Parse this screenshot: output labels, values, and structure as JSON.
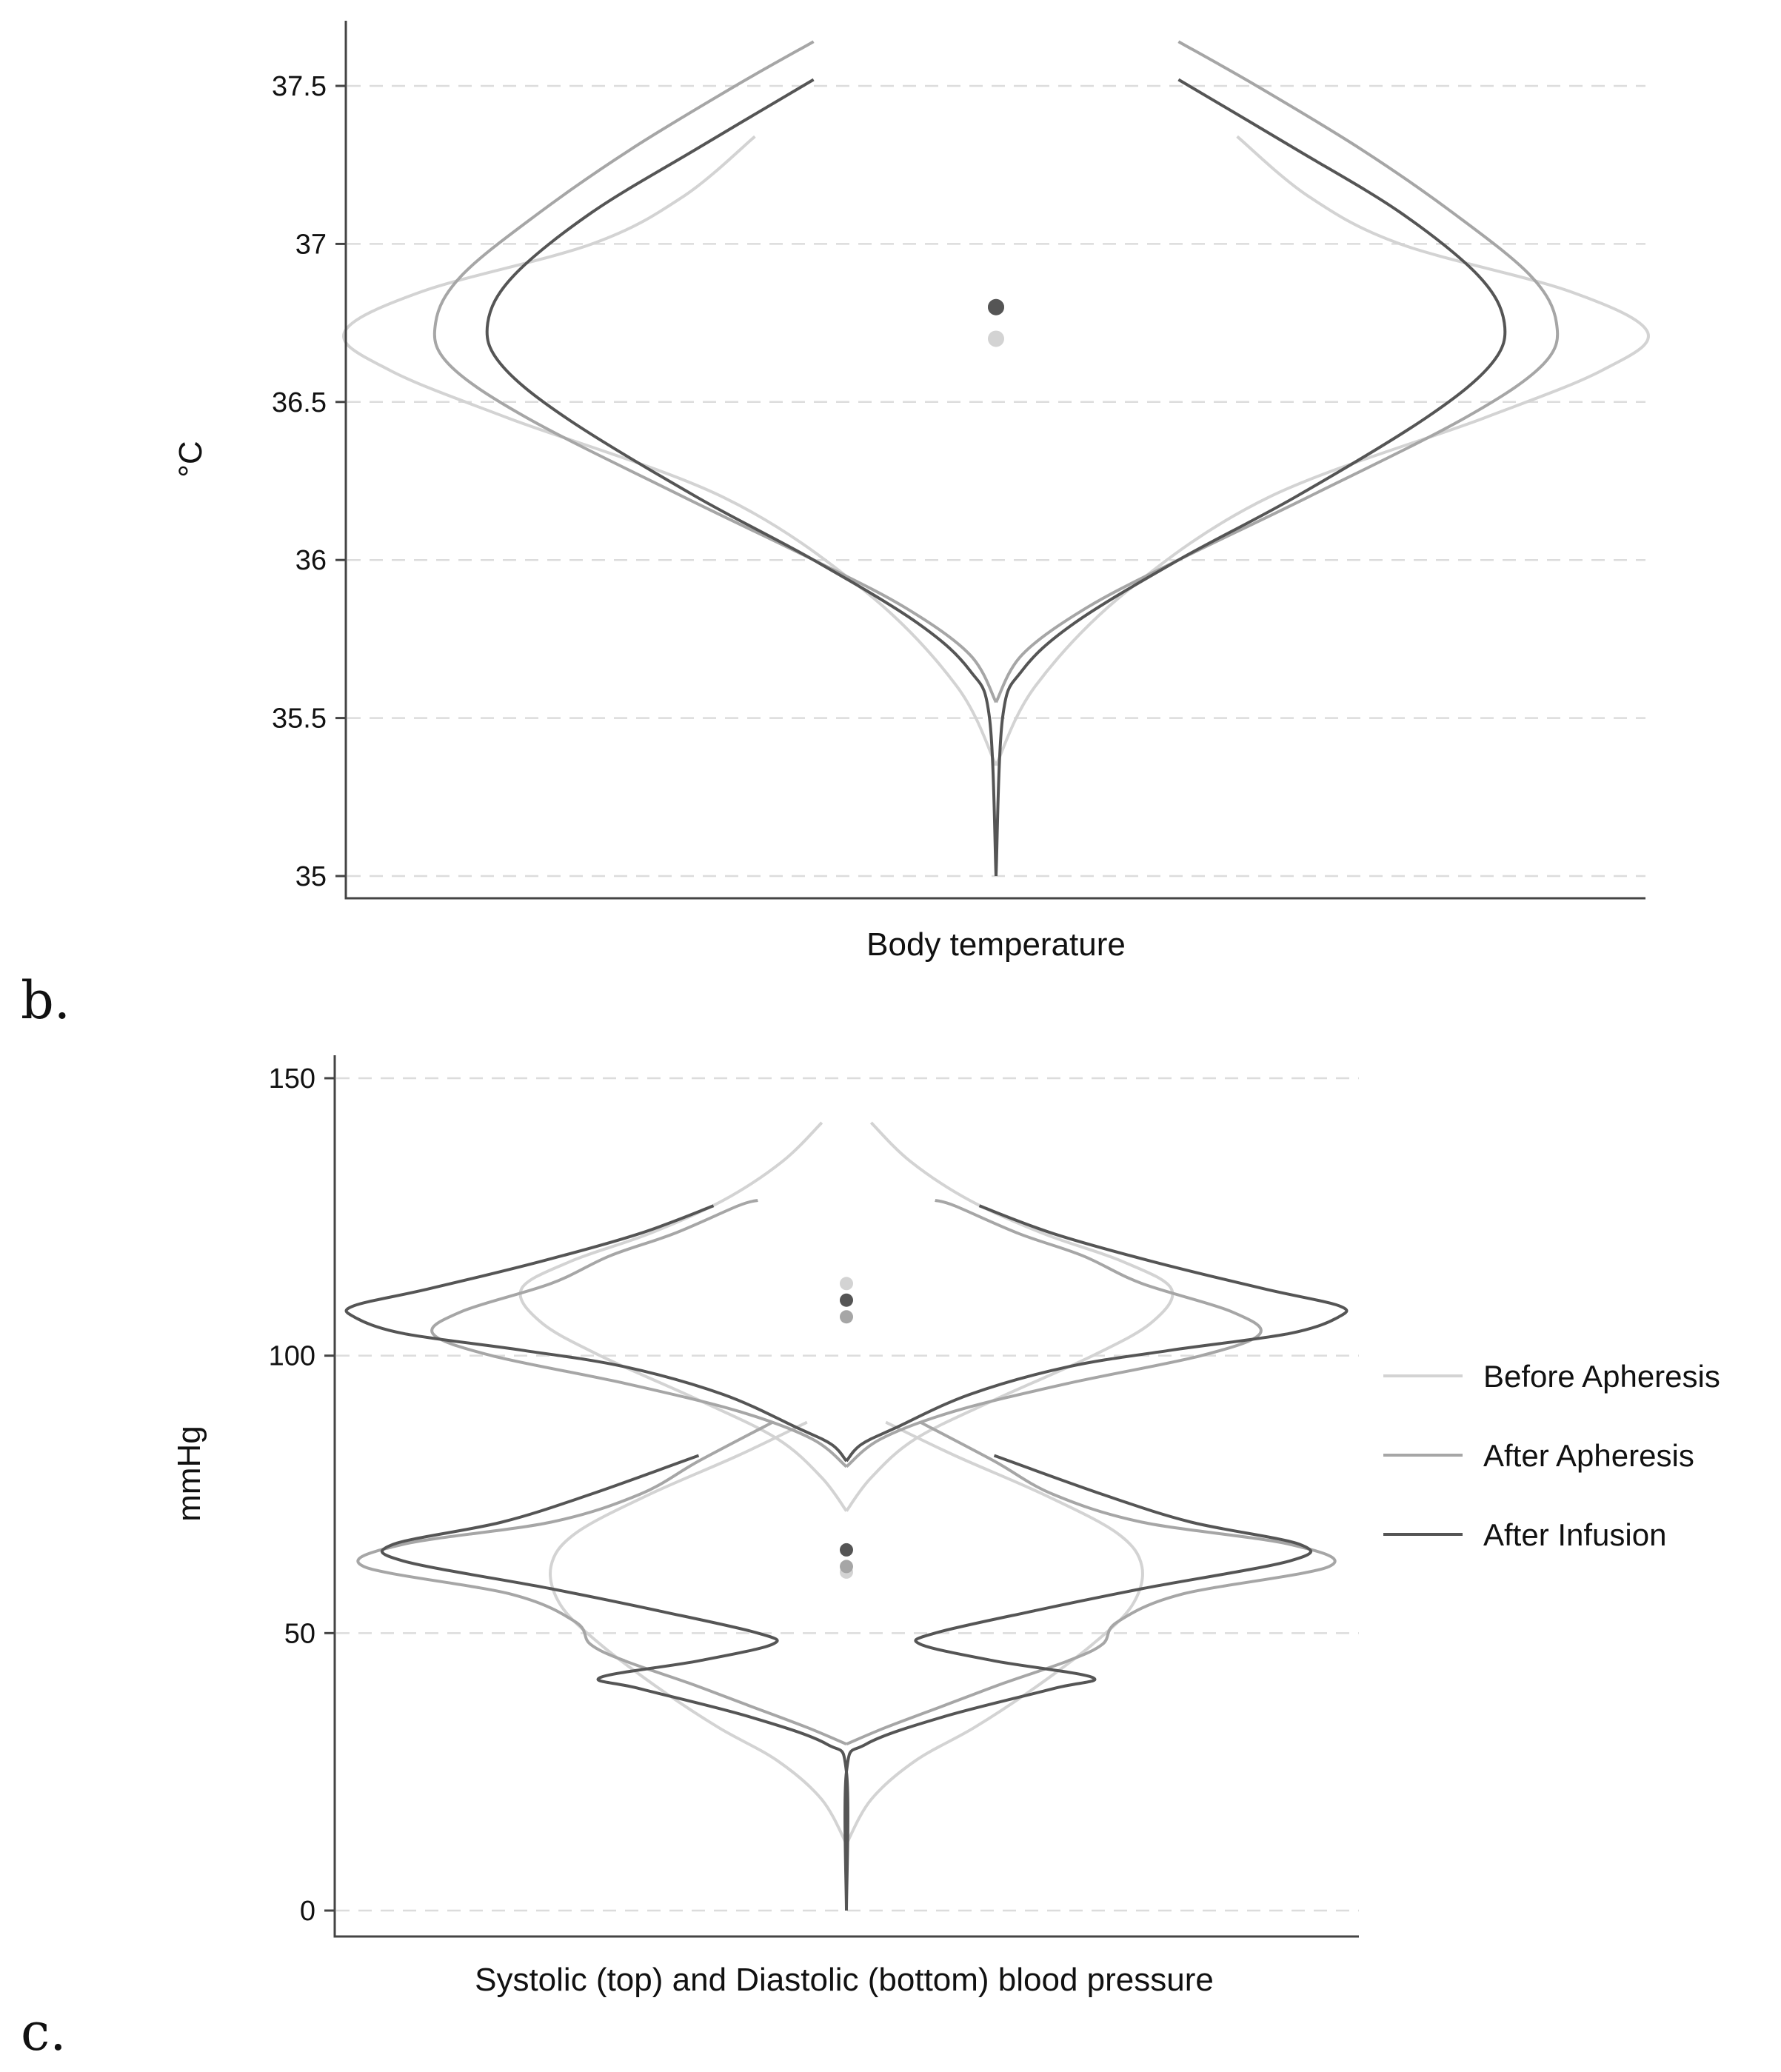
{
  "chart_data": [
    {
      "type": "violin",
      "xlabel": "Body temperature",
      "ylabel": "°C",
      "ylim": [
        35,
        37.65
      ],
      "y_ticks": [
        "35",
        "35.5",
        "36",
        "36.5",
        "37",
        "37.5"
      ],
      "y_tick_values": [
        35,
        35.5,
        36,
        36.5,
        37,
        37.5
      ],
      "grid": "horizontal dashed",
      "series": [
        {
          "key": "before",
          "color": "#d3d3d3",
          "median": 36.7,
          "density": [
            [
              35.35,
              0.0
            ],
            [
              35.6,
              0.06
            ],
            [
              35.9,
              0.2
            ],
            [
              36.2,
              0.42
            ],
            [
              36.45,
              0.75
            ],
            [
              36.6,
              0.93
            ],
            [
              36.72,
              1.0
            ],
            [
              36.85,
              0.88
            ],
            [
              37.0,
              0.62
            ],
            [
              37.15,
              0.48
            ],
            [
              37.34,
              0.37
            ]
          ]
        },
        {
          "key": "after_apheresis",
          "color": "#a6a6a6",
          "median": 36.8,
          "density": [
            [
              35.55,
              0.0
            ],
            [
              35.7,
              0.04
            ],
            [
              35.85,
              0.14
            ],
            [
              36.0,
              0.28
            ],
            [
              36.2,
              0.48
            ],
            [
              36.45,
              0.72
            ],
            [
              36.62,
              0.84
            ],
            [
              36.75,
              0.86
            ],
            [
              36.9,
              0.82
            ],
            [
              37.1,
              0.7
            ],
            [
              37.3,
              0.56
            ],
            [
              37.5,
              0.4
            ],
            [
              37.64,
              0.28
            ]
          ]
        },
        {
          "key": "after_infusion",
          "color": "#555555",
          "median": 36.8,
          "density": [
            [
              35.0,
              0.0
            ],
            [
              35.5,
              0.01
            ],
            [
              35.65,
              0.04
            ],
            [
              35.8,
              0.12
            ],
            [
              36.0,
              0.28
            ],
            [
              36.2,
              0.46
            ],
            [
              36.45,
              0.66
            ],
            [
              36.62,
              0.76
            ],
            [
              36.75,
              0.78
            ],
            [
              36.9,
              0.74
            ],
            [
              37.1,
              0.62
            ],
            [
              37.3,
              0.46
            ],
            [
              37.52,
              0.28
            ]
          ]
        }
      ]
    },
    {
      "type": "violin",
      "xlabel": "Systolic (top) and Diastolic (bottom) blood pressure",
      "ylabel": "mmHg",
      "ylim": [
        0,
        153
      ],
      "y_ticks": [
        "0",
        "50",
        "100",
        "150"
      ],
      "y_tick_values": [
        0,
        50,
        100,
        150
      ],
      "grid": "horizontal dashed",
      "series": [
        {
          "key": "before",
          "color": "#d3d3d3",
          "median_systolic": 113,
          "median_diastolic": 61,
          "systolic": [
            [
              72,
              0.0
            ],
            [
              78,
              0.05
            ],
            [
              85,
              0.14
            ],
            [
              92,
              0.3
            ],
            [
              100,
              0.5
            ],
            [
              106,
              0.62
            ],
            [
              112,
              0.66
            ],
            [
              117,
              0.56
            ],
            [
              122,
              0.4
            ],
            [
              128,
              0.25
            ],
            [
              135,
              0.13
            ],
            [
              142,
              0.05
            ]
          ],
          "diastolic": [
            [
              12,
              0.0
            ],
            [
              20,
              0.05
            ],
            [
              27,
              0.14
            ],
            [
              33,
              0.26
            ],
            [
              40,
              0.38
            ],
            [
              48,
              0.5
            ],
            [
              55,
              0.58
            ],
            [
              62,
              0.6
            ],
            [
              68,
              0.55
            ],
            [
              75,
              0.4
            ],
            [
              82,
              0.22
            ],
            [
              88,
              0.08
            ]
          ]
        },
        {
          "key": "after_apheresis",
          "color": "#a6a6a6",
          "median_systolic": 107,
          "median_diastolic": 62,
          "systolic": [
            [
              80,
              0.0
            ],
            [
              85,
              0.07
            ],
            [
              90,
              0.22
            ],
            [
              95,
              0.45
            ],
            [
              100,
              0.72
            ],
            [
              104,
              0.84
            ],
            [
              108,
              0.78
            ],
            [
              113,
              0.6
            ],
            [
              118,
              0.48
            ],
            [
              122,
              0.35
            ],
            [
              127,
              0.22
            ],
            [
              128,
              0.18
            ]
          ],
          "diastolic": [
            [
              30,
              0.0
            ],
            [
              33,
              0.08
            ],
            [
              37,
              0.2
            ],
            [
              41,
              0.32
            ],
            [
              45,
              0.45
            ],
            [
              48,
              0.52
            ],
            [
              52,
              0.55
            ],
            [
              57,
              0.68
            ],
            [
              62,
              0.98
            ],
            [
              66,
              0.9
            ],
            [
              70,
              0.6
            ],
            [
              75,
              0.42
            ],
            [
              81,
              0.3
            ],
            [
              88,
              0.15
            ]
          ]
        },
        {
          "key": "after_infusion",
          "color": "#555555",
          "median_systolic": 110,
          "median_diastolic": 65,
          "systolic": [
            [
              81,
              0.0
            ],
            [
              84,
              0.03
            ],
            [
              87,
              0.1
            ],
            [
              93,
              0.25
            ],
            [
              98,
              0.45
            ],
            [
              101,
              0.66
            ],
            [
              104,
              0.9
            ],
            [
              107,
              1.0
            ],
            [
              109,
              1.0
            ],
            [
              112,
              0.85
            ],
            [
              117,
              0.62
            ],
            [
              122,
              0.42
            ],
            [
              127,
              0.27
            ]
          ],
          "diastolic": [
            [
              0,
              0.0
            ],
            [
              25,
              0.0
            ],
            [
              30,
              0.04
            ],
            [
              35,
              0.2
            ],
            [
              40,
              0.42
            ],
            [
              42,
              0.5
            ],
            [
              45,
              0.3
            ],
            [
              48,
              0.15
            ],
            [
              50,
              0.18
            ],
            [
              54,
              0.38
            ],
            [
              58,
              0.6
            ],
            [
              63,
              0.9
            ],
            [
              66,
              0.92
            ],
            [
              70,
              0.7
            ],
            [
              75,
              0.52
            ],
            [
              82,
              0.3
            ]
          ]
        }
      ]
    }
  ],
  "panel_labels": {
    "b": "b.",
    "c": "c."
  },
  "legend": {
    "position": "right",
    "items": [
      {
        "label": "Before Apheresis",
        "color": "#d3d3d3"
      },
      {
        "label": "After Apheresis",
        "color": "#a6a6a6"
      },
      {
        "label": "After Infusion",
        "color": "#555555"
      }
    ]
  }
}
